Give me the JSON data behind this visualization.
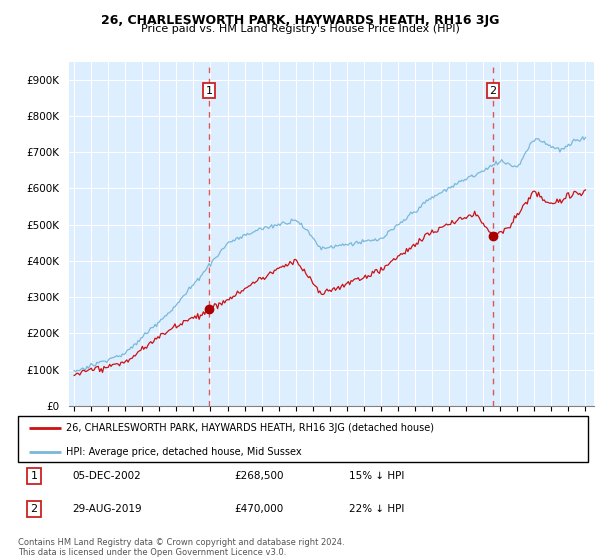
{
  "title": "26, CHARLESWORTH PARK, HAYWARDS HEATH, RH16 3JG",
  "subtitle": "Price paid vs. HM Land Registry's House Price Index (HPI)",
  "sale1_x": 2002.917,
  "sale1_price": 268500,
  "sale1_label": "1",
  "sale1_annotation": "05-DEC-2002",
  "sale1_amount": "£268,500",
  "sale1_hpi": "15% ↓ HPI",
  "sale2_x": 2019.583,
  "sale2_price": 470000,
  "sale2_label": "2",
  "sale2_annotation": "29-AUG-2019",
  "sale2_amount": "£470,000",
  "sale2_hpi": "22% ↓ HPI",
  "hpi_color": "#7ab8d9",
  "price_color": "#cc1111",
  "vline_color": "#dd5555",
  "dot_color": "#aa0000",
  "bg_color": "#ddeeff",
  "legend_line1": "26, CHARLESWORTH PARK, HAYWARDS HEATH, RH16 3JG (detached house)",
  "legend_line2": "HPI: Average price, detached house, Mid Sussex",
  "footer": "Contains HM Land Registry data © Crown copyright and database right 2024.\nThis data is licensed under the Open Government Licence v3.0.",
  "ylim": [
    0,
    950000
  ],
  "yticks": [
    0,
    100000,
    200000,
    300000,
    400000,
    500000,
    600000,
    700000,
    800000,
    900000
  ],
  "ytick_labels": [
    "£0",
    "£100K",
    "£200K",
    "£300K",
    "£400K",
    "£500K",
    "£600K",
    "£700K",
    "£800K",
    "£900K"
  ],
  "xlim_start": 1994.7,
  "xlim_end": 2025.5,
  "xtickyears": [
    1995,
    1996,
    1997,
    1998,
    1999,
    2000,
    2001,
    2002,
    2003,
    2004,
    2005,
    2006,
    2007,
    2008,
    2009,
    2010,
    2011,
    2012,
    2013,
    2014,
    2015,
    2016,
    2017,
    2018,
    2019,
    2020,
    2021,
    2022,
    2023,
    2024,
    2025
  ]
}
